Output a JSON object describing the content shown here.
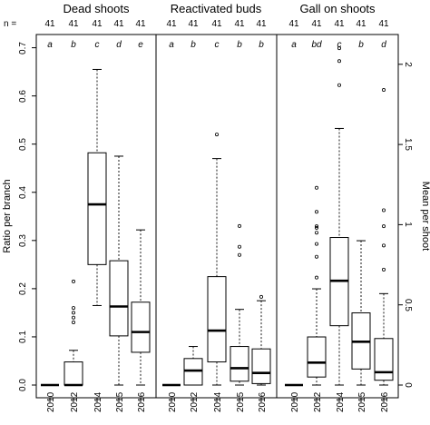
{
  "chart_data": {
    "type": "box",
    "n_prefix": "n =",
    "ylabel_left": "Ratio per branch",
    "ylabel_right": "Mean per shoot",
    "left_axis": {
      "range": [
        0,
        0.75
      ],
      "ticks": [
        0.0,
        0.1,
        0.2,
        0.3,
        0.4,
        0.5,
        0.6,
        0.7
      ],
      "tick_labels": [
        "0.0",
        "0.1",
        "0.2",
        "0.3",
        "0.4",
        "0.5",
        "0.6",
        "0.7"
      ]
    },
    "right_axis": {
      "range": [
        0,
        2.25
      ],
      "ticks": [
        0,
        0.5,
        1,
        1.5,
        2
      ],
      "tick_labels": [
        "0",
        "0.5",
        "1",
        "1.5",
        "2"
      ]
    },
    "categories": [
      "2010",
      "2012",
      "2014",
      "2015",
      "2016"
    ],
    "panels": [
      {
        "title": "Dead shoots",
        "axis": "left",
        "n": [
          "41",
          "41",
          "41",
          "41",
          "41"
        ],
        "letters": [
          "a",
          "b",
          "c",
          "d",
          "e"
        ],
        "boxes": [
          {
            "min": 0,
            "q1": 0,
            "median": 0,
            "q3": 0,
            "max": 0,
            "outliers": []
          },
          {
            "min": 0,
            "q1": 0,
            "median": 0,
            "q3": 0.048,
            "max": 0.072,
            "outliers": [
              0.13,
              0.14,
              0.15,
              0.16,
              0.215
            ]
          },
          {
            "min": 0.165,
            "q1": 0.25,
            "median": 0.375,
            "q3": 0.482,
            "max": 0.655,
            "outliers": []
          },
          {
            "min": 0,
            "q1": 0.102,
            "median": 0.163,
            "q3": 0.258,
            "max": 0.475,
            "outliers": []
          },
          {
            "min": 0,
            "q1": 0.068,
            "median": 0.11,
            "q3": 0.172,
            "max": 0.322,
            "outliers": []
          }
        ]
      },
      {
        "title": "Reactivated buds",
        "axis": "left",
        "n": [
          "41",
          "41",
          "41",
          "41",
          "41"
        ],
        "letters": [
          "a",
          "b",
          "c",
          "b",
          "b"
        ],
        "boxes": [
          {
            "min": 0,
            "q1": 0,
            "median": 0,
            "q3": 0,
            "max": 0,
            "outliers": []
          },
          {
            "min": 0,
            "q1": 0,
            "median": 0.03,
            "q3": 0.055,
            "max": 0.08,
            "outliers": []
          },
          {
            "min": 0,
            "q1": 0.048,
            "median": 0.113,
            "q3": 0.225,
            "max": 0.47,
            "outliers": [
              0.52
            ]
          },
          {
            "min": 0,
            "q1": 0.008,
            "median": 0.035,
            "q3": 0.08,
            "max": 0.157,
            "outliers": [
              0.27,
              0.287,
              0.33
            ]
          },
          {
            "min": 0,
            "q1": 0.003,
            "median": 0.025,
            "q3": 0.075,
            "max": 0.175,
            "outliers": [
              0.183
            ]
          }
        ]
      },
      {
        "title": "Gall on shoots",
        "axis": "right",
        "n": [
          "41",
          "41",
          "41",
          "41",
          "41"
        ],
        "letters": [
          "a",
          "bd",
          "c",
          "b",
          "d"
        ],
        "boxes": [
          {
            "min": 0,
            "q1": 0,
            "median": 0,
            "q3": 0,
            "max": 0,
            "outliers": []
          },
          {
            "min": 0,
            "q1": 0.05,
            "median": 0.14,
            "q3": 0.3,
            "max": 0.6,
            "outliers": [
              0.67,
              0.8,
              0.88,
              0.95,
              0.98,
              0.99,
              1.08,
              1.23
            ]
          },
          {
            "min": 0,
            "q1": 0.37,
            "median": 0.65,
            "q3": 0.92,
            "max": 1.6,
            "outliers": [
              1.87,
              2.02,
              2.1
            ]
          },
          {
            "min": 0,
            "q1": 0.1,
            "median": 0.27,
            "q3": 0.45,
            "max": 0.9,
            "outliers": []
          },
          {
            "min": 0,
            "q1": 0.03,
            "median": 0.08,
            "q3": 0.29,
            "max": 0.57,
            "outliers": [
              0.72,
              0.87,
              0.99,
              1.09,
              1.84
            ]
          }
        ]
      }
    ]
  }
}
